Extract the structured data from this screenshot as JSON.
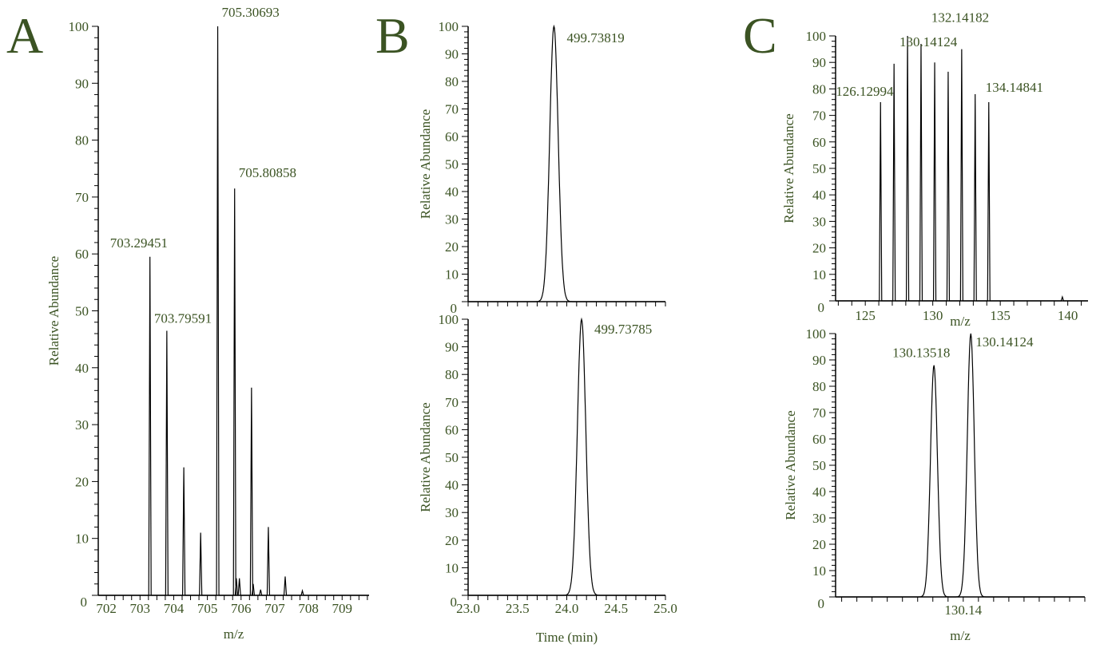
{
  "colors": {
    "text": "#3b5323",
    "trace": "#000000",
    "leader": "#66cc66"
  },
  "chart_data": [
    {
      "panel": "A",
      "type": "line",
      "subtype": "mass-spectrum-sticks",
      "xlabel": "m/z",
      "ylabel": "Relative Abundance",
      "xlim": [
        701.76,
        709.8
      ],
      "ylim": [
        0,
        100
      ],
      "xticks": [
        "702",
        "703",
        "704",
        "705",
        "706",
        "707",
        "708",
        "709"
      ],
      "yticks": [
        "0",
        "10",
        "20",
        "30",
        "40",
        "50",
        "60",
        "70",
        "80",
        "90",
        "100"
      ],
      "peaks": [
        [
          703.29451,
          59.5
        ],
        [
          703.79591,
          46.5
        ],
        [
          704.3,
          22.5
        ],
        [
          704.8,
          11
        ],
        [
          705.30693,
          100
        ],
        [
          705.80858,
          71.5
        ],
        [
          705.86,
          3
        ],
        [
          705.95,
          3
        ],
        [
          706.31,
          36.5
        ],
        [
          706.36,
          2
        ],
        [
          706.58,
          1
        ],
        [
          706.81,
          12
        ],
        [
          707.31,
          3.3
        ],
        [
          707.82,
          0.8
        ]
      ],
      "annotations": [
        {
          "text": "705.30693",
          "x": 705.30693,
          "y": 100
        },
        {
          "text": "705.80858",
          "x": 705.80858,
          "y": 71.5
        },
        {
          "text": "703.29451",
          "x": 703.29451,
          "y": 59.5
        },
        {
          "text": "703.79591",
          "x": 703.79591,
          "y": 46.5
        }
      ]
    },
    {
      "panel": "B",
      "type": "line",
      "subtype": "chromatogram",
      "ylabel": "Relative Abundance",
      "xlim": [
        23.0,
        25.0
      ],
      "ylim": [
        0,
        100
      ],
      "yticks": [
        "0",
        "10",
        "20",
        "30",
        "40",
        "50",
        "60",
        "70",
        "80",
        "90",
        "100"
      ],
      "peaks": [
        [
          23.87,
          100
        ]
      ],
      "annotations": [
        {
          "text": "499.73819",
          "x": 23.87,
          "y": 100
        }
      ]
    },
    {
      "panel": "B2",
      "type": "line",
      "subtype": "chromatogram",
      "xlabel": "Time (min)",
      "ylabel": "Relative Abundance",
      "xlim": [
        23.0,
        25.0
      ],
      "ylim": [
        0,
        100
      ],
      "xticks": [
        "23.0",
        "23.5",
        "24.0",
        "24.5",
        "25.0"
      ],
      "yticks": [
        "0",
        "10",
        "20",
        "30",
        "40",
        "50",
        "60",
        "70",
        "80",
        "90",
        "100"
      ],
      "peaks": [
        [
          24.15,
          100
        ]
      ],
      "annotations": [
        {
          "text": "499.73785",
          "x": 24.15,
          "y": 100
        }
      ]
    },
    {
      "panel": "C",
      "type": "line",
      "subtype": "mass-spectrum-sticks",
      "xlabel": "m/z",
      "ylabel": "Relative Abundance",
      "xlim": [
        122.8,
        141.5
      ],
      "ylim": [
        0,
        100
      ],
      "xticks": [
        "125",
        "130",
        "135",
        "140"
      ],
      "yticks": [
        "0",
        "10",
        "20",
        "30",
        "40",
        "50",
        "60",
        "70",
        "80",
        "90",
        "100"
      ],
      "peaks": [
        [
          126.12994,
          75
        ],
        [
          127.13,
          89.5
        ],
        [
          128.13,
          100
        ],
        [
          129.13,
          97
        ],
        [
          130.14124,
          90
        ],
        [
          131.14,
          86.5
        ],
        [
          132.14182,
          95
        ],
        [
          133.14,
          78
        ],
        [
          134.14841,
          75
        ],
        [
          139.6,
          1.5
        ]
      ],
      "annotations": [
        {
          "text": "130.14124",
          "x": 130.14124,
          "y": 90
        },
        {
          "text": "132.14182",
          "x": 132.14182,
          "y": 95
        },
        {
          "text": "126.12994",
          "x": 126.12994,
          "y": 75
        },
        {
          "text": "134.14841",
          "x": 134.14841,
          "y": 75
        }
      ]
    },
    {
      "panel": "C2",
      "type": "line",
      "subtype": "mass-spectrum-profile",
      "xlabel": "m/z",
      "ylabel": "Relative Abundance",
      "xlim": [
        130.119,
        130.16
      ],
      "ylim": [
        0,
        100
      ],
      "xticks": [
        "130.14"
      ],
      "yticks": [
        "0",
        "10",
        "20",
        "30",
        "40",
        "50",
        "60",
        "70",
        "80",
        "90",
        "100"
      ],
      "peaks": [
        [
          130.13518,
          88
        ],
        [
          130.14124,
          100
        ]
      ],
      "annotations": [
        {
          "text": "130.13518",
          "x": 130.13518,
          "y": 88
        },
        {
          "text": "130.14124",
          "x": 130.14124,
          "y": 100
        }
      ]
    }
  ],
  "panel_letters": [
    "A",
    "B",
    "C"
  ]
}
